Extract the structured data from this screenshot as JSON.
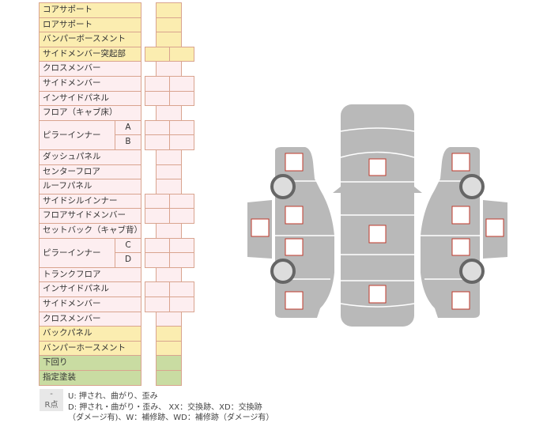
{
  "colors": {
    "yellow": "#fbedb0",
    "pink": "#fdeef0",
    "green": "#c9dca2",
    "border": "#d9a48f",
    "car": "#b9b9b9",
    "mark": "#c0392b"
  },
  "rows": [
    {
      "label": "コアサポート",
      "color": "yellow",
      "cols": 1
    },
    {
      "label": "ロアサポート",
      "color": "yellow",
      "cols": 1
    },
    {
      "label": "バンパーボースメント",
      "color": "yellow",
      "cols": 1
    },
    {
      "label": "サイドメンバー突起部",
      "color": "yellow",
      "cols": 2
    },
    {
      "label": "クロスメンバー",
      "color": "pink",
      "cols": 1
    },
    {
      "label": "サイドメンバー",
      "color": "pink",
      "cols": 2
    },
    {
      "label": "インサイドパネル",
      "color": "pink",
      "cols": 2
    },
    {
      "label": "フロア（キャブ床）",
      "color": "pink",
      "cols": 1
    },
    {
      "label": "ピラーインナー",
      "sub": "A",
      "color": "pink",
      "cols": 2
    },
    {
      "label": "",
      "sub": "B",
      "color": "pink",
      "cols": 2
    },
    {
      "label": "ダッシュパネル",
      "color": "pink",
      "cols": 1
    },
    {
      "label": "センターフロア",
      "color": "pink",
      "cols": 1
    },
    {
      "label": "ルーフパネル",
      "color": "pink",
      "cols": 1
    },
    {
      "label": "サイドシルインナー",
      "color": "pink",
      "cols": 2
    },
    {
      "label": "フロアサイドメンバー",
      "color": "pink",
      "cols": 2
    },
    {
      "label": "セットバック（キャブ背）",
      "color": "pink",
      "cols": 1
    },
    {
      "label": "ピラーインナー",
      "sub": "C",
      "color": "pink",
      "cols": 2
    },
    {
      "label": "",
      "sub": "D",
      "color": "pink",
      "cols": 2
    },
    {
      "label": "トランクフロア",
      "color": "pink",
      "cols": 1
    },
    {
      "label": "インサイドパネル",
      "color": "pink",
      "cols": 2
    },
    {
      "label": "サイドメンバー",
      "color": "pink",
      "cols": 2
    },
    {
      "label": "クロスメンバー",
      "color": "pink",
      "cols": 1
    },
    {
      "label": "バックパネル",
      "color": "yellow",
      "cols": 1
    },
    {
      "label": "バンパーホースメント",
      "color": "yellow",
      "cols": 1
    },
    {
      "label": "下回り",
      "color": "green",
      "cols": 1
    },
    {
      "label": "指定塗装",
      "color": "green",
      "cols": 1
    }
  ],
  "legend": {
    "key1": "-",
    "text1": "U: 押され、曲がり、歪み",
    "key2": "R点",
    "text2": "D: 押され・曲がり・歪み、 XX：交換跡、XD：交換跡",
    "text3": "（ダメージ有)、W：補修跡、WD：補修跡（ダメージ有）"
  }
}
